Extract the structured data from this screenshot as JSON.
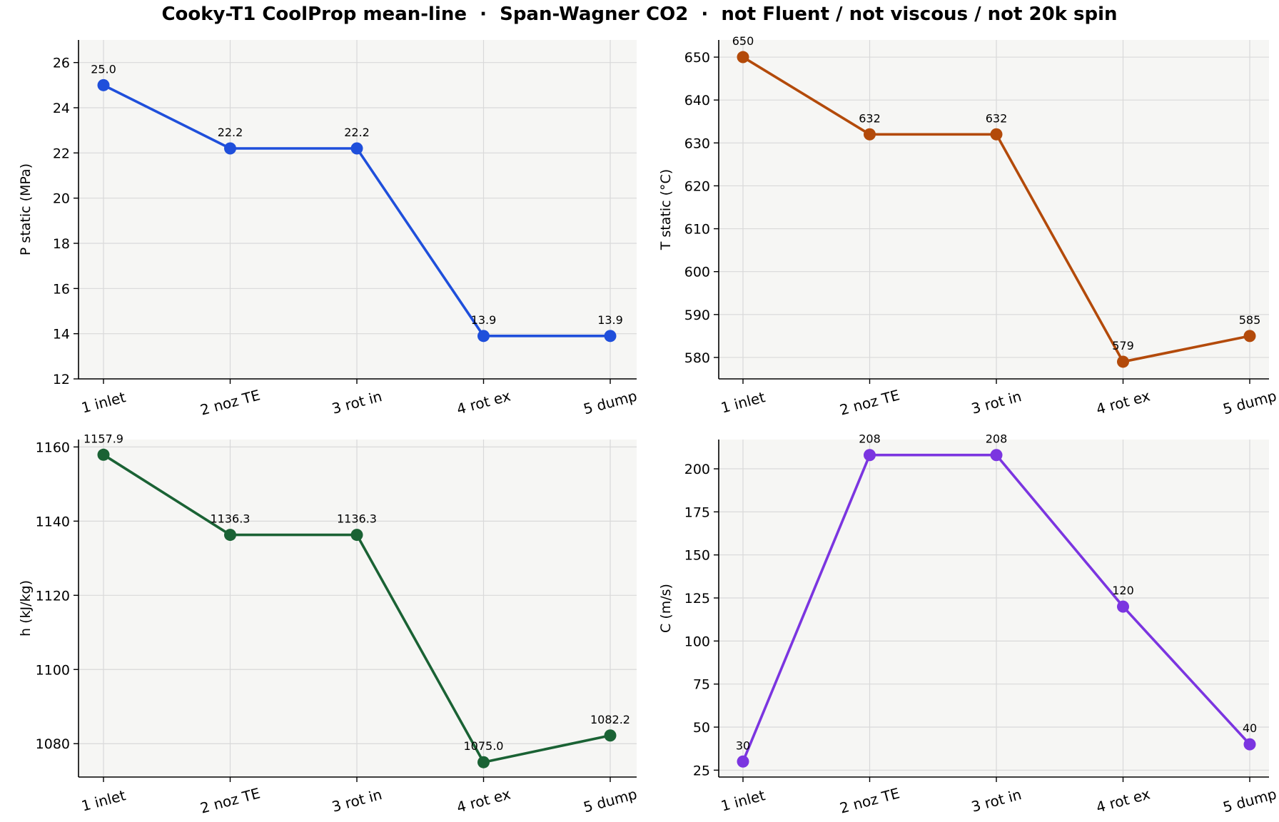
{
  "figure": {
    "title": "Cooky-T1 CoolProp mean-line  ·  Span-Wagner CO2  ·  not Fluent / not viscous / not 20k spin"
  },
  "chart_data": [
    {
      "type": "line",
      "categories": [
        "1 inlet",
        "2 noz TE",
        "3 rot in",
        "4 rot ex",
        "5 dump"
      ],
      "series": [
        {
          "values": [
            25.0,
            22.2,
            22.2,
            13.9,
            13.9
          ],
          "color": "#1f4fdb"
        }
      ],
      "data_labels": [
        "25.0",
        "22.2",
        "22.2",
        "13.9",
        "13.9"
      ],
      "ylabel": "P static (MPa)",
      "ylim": [
        12,
        27
      ],
      "yticks": [
        12,
        14,
        16,
        18,
        20,
        22,
        24,
        26
      ],
      "grid": true
    },
    {
      "type": "line",
      "categories": [
        "1 inlet",
        "2 noz TE",
        "3 rot in",
        "4 rot ex",
        "5 dump"
      ],
      "series": [
        {
          "values": [
            650,
            632,
            632,
            579,
            585
          ],
          "color": "#b34a0a"
        }
      ],
      "data_labels": [
        "650",
        "632",
        "632",
        "579",
        "585"
      ],
      "ylabel": "T static (°C)",
      "ylim": [
        575,
        654
      ],
      "yticks": [
        580,
        590,
        600,
        610,
        620,
        630,
        640,
        650
      ],
      "grid": true
    },
    {
      "type": "line",
      "categories": [
        "1 inlet",
        "2 noz TE",
        "3 rot in",
        "4 rot ex",
        "5 dump"
      ],
      "series": [
        {
          "values": [
            1157.9,
            1136.3,
            1136.3,
            1075.0,
            1082.2
          ],
          "color": "#1a6234"
        }
      ],
      "data_labels": [
        "1157.9",
        "1136.3",
        "1136.3",
        "1075.0",
        "1082.2"
      ],
      "ylabel": "h (kJ/kg)",
      "ylim": [
        1071,
        1162
      ],
      "yticks": [
        1080,
        1100,
        1120,
        1140,
        1160
      ],
      "grid": true
    },
    {
      "type": "line",
      "categories": [
        "1 inlet",
        "2 noz TE",
        "3 rot in",
        "4 rot ex",
        "5 dump"
      ],
      "series": [
        {
          "values": [
            30,
            208,
            208,
            120,
            40
          ],
          "color": "#7b35e0"
        }
      ],
      "data_labels": [
        "30",
        "208",
        "208",
        "120",
        "40"
      ],
      "ylabel": "C (m/s)",
      "ylim": [
        21,
        217
      ],
      "yticks": [
        25,
        50,
        75,
        100,
        125,
        150,
        175,
        200
      ],
      "grid": true
    }
  ]
}
